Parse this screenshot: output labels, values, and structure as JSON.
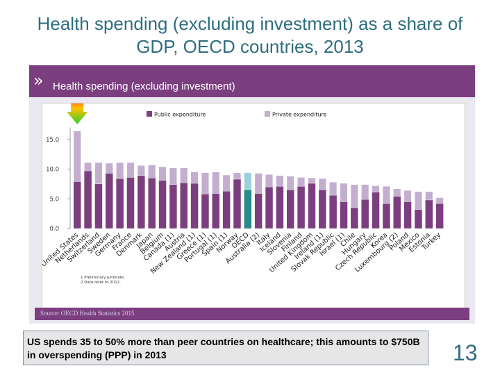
{
  "slide": {
    "title": "Health spending (excluding investment) as a share of GDP, OECD countries, 2013",
    "panel_title": "Health spending (excluding investment)",
    "footnotes": [
      "1 Preliminary estimate.",
      "2 Data refer to 2012."
    ],
    "source": "Source: OECD Health Statistics 2015",
    "callout": "US spends 35 to 50% more than peer countries on healthcare; this amounts to $750B in overspending (PPP) in 2013",
    "page_number": "13"
  },
  "colors": {
    "public": "#7b3f80",
    "private": "#c3aed0",
    "oecd_public": "#2a8a8a",
    "oecd_private": "#9ad0dc",
    "title": "#2e6e7e",
    "panel_header": "#7b3f80"
  },
  "chart_data": {
    "type": "bar",
    "stacked": true,
    "categories": [
      "United States",
      "Netherlands",
      "Switzerland",
      "Sweden",
      "Germany",
      "France",
      "Denmark",
      "Japan",
      "Belgium",
      "Canada (1)",
      "Austria",
      "New Zealand (1)",
      "Greece (1)",
      "Portugal (1)",
      "Spain (1)",
      "Norway",
      "OECD",
      "Australia (2)",
      "Italy",
      "Iceland",
      "Slovenia",
      "Finland",
      "United Kingdom",
      "Ireland (1)",
      "Slovak Republic",
      "Israel (1)",
      "Chile",
      "Hungary",
      "Czech Republic",
      "Korea",
      "Luxembourg (2)",
      "Poland",
      "Mexico",
      "Estonia",
      "Turkey"
    ],
    "highlight_category": "OECD",
    "series": [
      {
        "name": "Public expenditure",
        "values": [
          7.9,
          9.7,
          7.5,
          9.3,
          8.4,
          8.6,
          8.9,
          8.5,
          8.1,
          7.4,
          7.7,
          7.6,
          5.8,
          5.9,
          6.3,
          8.3,
          6.5,
          5.9,
          7.0,
          7.1,
          6.5,
          7.1,
          7.6,
          6.5,
          5.6,
          4.5,
          3.5,
          4.9,
          6.1,
          4.2,
          5.4,
          4.5,
          3.2,
          4.8,
          4.2
        ]
      },
      {
        "name": "Private expenditure",
        "values": [
          8.5,
          1.4,
          3.6,
          1.7,
          2.7,
          2.5,
          1.7,
          2.2,
          2.3,
          2.8,
          2.5,
          1.9,
          3.6,
          3.6,
          2.7,
          1.1,
          2.9,
          3.4,
          2.1,
          1.8,
          2.3,
          1.5,
          0.9,
          1.9,
          2.2,
          3.1,
          3.9,
          2.5,
          1.1,
          2.9,
          1.3,
          1.9,
          3.0,
          1.4,
          1.0
        ]
      }
    ],
    "title": "",
    "xlabel": "",
    "ylabel": "",
    "yticks": [
      "0.0",
      "5.0",
      "10.0",
      "15.0"
    ],
    "ylim": [
      0,
      17
    ],
    "legend_position": "top",
    "grid": false
  }
}
